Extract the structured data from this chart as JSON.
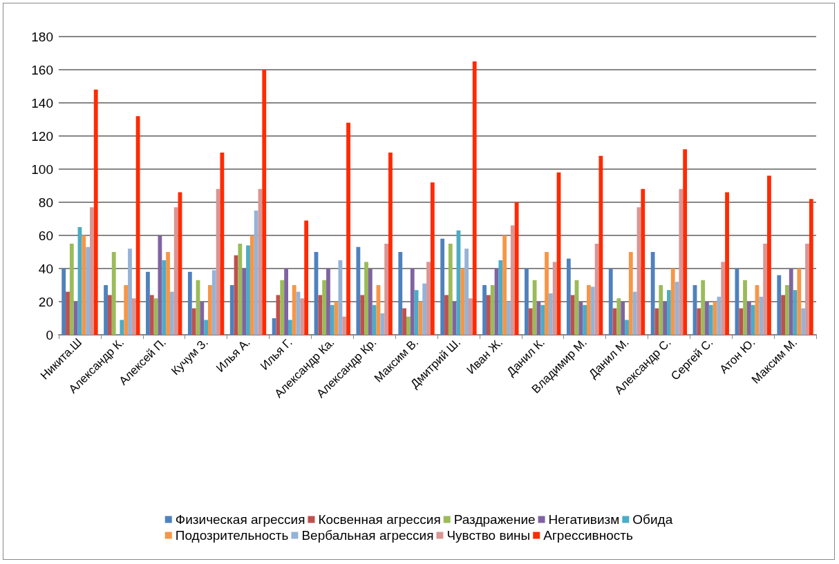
{
  "chart_data": {
    "type": "bar",
    "categories": [
      "Никита.Ш",
      "Александр К.",
      "Алексей П.",
      "Кучум З.",
      "Илья А.",
      "Илья Г.",
      "Александр Ка.",
      "Александр Кр.",
      "Максим В.",
      "Дмитрий Ш.",
      "Иван Ж.",
      "Данил К.",
      "Владимир М.",
      "Данил М.",
      "Александр С.",
      "Сергей С.",
      "Атон Ю.",
      "Максим М."
    ],
    "series": [
      {
        "name": "Физическая агрессия",
        "color": "#4f81bd",
        "values": [
          40,
          30,
          38,
          38,
          30,
          10,
          50,
          53,
          50,
          58,
          30,
          40,
          46,
          40,
          50,
          30,
          40,
          36
        ]
      },
      {
        "name": "Косвенная агрессия",
        "color": "#c0504d",
        "values": [
          26,
          24,
          24,
          16,
          48,
          24,
          24,
          24,
          16,
          24,
          24,
          16,
          24,
          16,
          16,
          16,
          16,
          24
        ]
      },
      {
        "name": "Раздражение",
        "color": "#9bbb59",
        "values": [
          55,
          50,
          22,
          33,
          55,
          33,
          33,
          44,
          11,
          55,
          30,
          33,
          33,
          22,
          30,
          33,
          33,
          30
        ]
      },
      {
        "name": "Негативизм",
        "color": "#8064a2",
        "values": [
          20,
          0,
          60,
          20,
          40,
          40,
          40,
          40,
          40,
          20,
          40,
          20,
          20,
          20,
          20,
          20,
          20,
          40
        ]
      },
      {
        "name": "Обида",
        "color": "#4bacc6",
        "values": [
          65,
          9,
          45,
          9,
          54,
          9,
          18,
          18,
          27,
          63,
          45,
          18,
          18,
          9,
          27,
          18,
          18,
          27
        ]
      },
      {
        "name": "Подозрительность",
        "color": "#f79646",
        "values": [
          60,
          30,
          50,
          30,
          60,
          30,
          20,
          30,
          20,
          40,
          60,
          50,
          30,
          50,
          40,
          20,
          30,
          40
        ]
      },
      {
        "name": "Вербальная агрессия",
        "color": "#95b3d7",
        "values": [
          53,
          52,
          26,
          39,
          75,
          26,
          45,
          13,
          31,
          52,
          20,
          25,
          29,
          26,
          32,
          23,
          23,
          16
        ]
      },
      {
        "name": "Чувство вины",
        "color": "#d99694",
        "values": [
          77,
          22,
          77,
          88,
          88,
          22,
          11,
          55,
          44,
          22,
          66,
          44,
          55,
          77,
          88,
          44,
          55,
          55
        ]
      },
      {
        "name": "Агрессивность",
        "color": "#ff2a00",
        "values": [
          148,
          132,
          86,
          110,
          160,
          69,
          128,
          110,
          92,
          165,
          80,
          98,
          108,
          88,
          112,
          86,
          96,
          82
        ]
      }
    ],
    "ylim": [
      0,
      180
    ],
    "yticks": [
      0,
      20,
      40,
      60,
      80,
      100,
      120,
      140,
      160,
      180
    ],
    "grid": "y",
    "legend": "bottom"
  }
}
